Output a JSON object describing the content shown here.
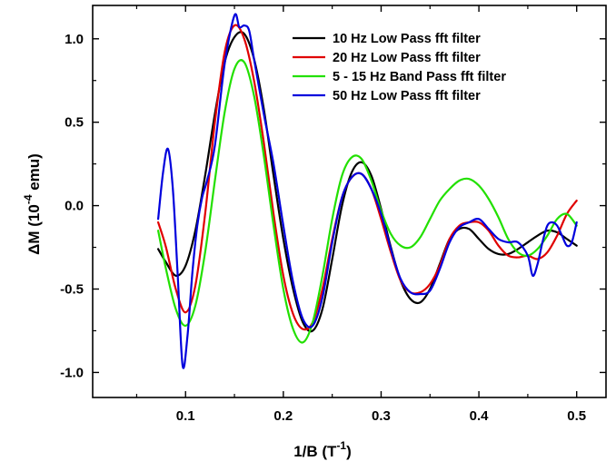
{
  "chart_data": {
    "type": "line",
    "title": "",
    "xlabel": "1/B (T",
    "xlabel_sup": "-1",
    "xlabel_tail": ")",
    "ylabel_pre": "ΔM (10",
    "ylabel_sup": "-4",
    "ylabel_tail": " emu)",
    "xlim": [
      0.005,
      0.53
    ],
    "ylim": [
      -1.15,
      1.2
    ],
    "x_ticks": [
      0.1,
      0.2,
      0.3,
      0.4,
      0.5
    ],
    "x_tick_labels": [
      "0.1",
      "0.2",
      "0.3",
      "0.4",
      "0.5"
    ],
    "y_ticks": [
      -1.0,
      -0.5,
      0.0,
      0.5,
      1.0
    ],
    "y_tick_labels": [
      "-1.0",
      "-0.5",
      "0.0",
      "0.5",
      "1.0"
    ],
    "grid": false,
    "legend_position": "top-right",
    "series": [
      {
        "name": "10 Hz Low Pass fft filter",
        "color": "#000000",
        "x": [
          0.072,
          0.08,
          0.09,
          0.1,
          0.11,
          0.12,
          0.13,
          0.14,
          0.15,
          0.16,
          0.17,
          0.18,
          0.19,
          0.2,
          0.21,
          0.22,
          0.23,
          0.24,
          0.25,
          0.26,
          0.27,
          0.28,
          0.29,
          0.3,
          0.31,
          0.32,
          0.33,
          0.34,
          0.35,
          0.36,
          0.37,
          0.38,
          0.39,
          0.4,
          0.41,
          0.42,
          0.43,
          0.44,
          0.45,
          0.46,
          0.47,
          0.48,
          0.49,
          0.5
        ],
        "y": [
          -0.26,
          -0.34,
          -0.42,
          -0.36,
          -0.15,
          0.18,
          0.55,
          0.86,
          1.01,
          1.03,
          0.88,
          0.58,
          0.18,
          -0.2,
          -0.5,
          -0.7,
          -0.75,
          -0.62,
          -0.32,
          0.0,
          0.2,
          0.26,
          0.18,
          -0.02,
          -0.25,
          -0.45,
          -0.56,
          -0.58,
          -0.5,
          -0.35,
          -0.2,
          -0.14,
          -0.14,
          -0.2,
          -0.26,
          -0.29,
          -0.29,
          -0.26,
          -0.22,
          -0.18,
          -0.15,
          -0.16,
          -0.2,
          -0.24
        ]
      },
      {
        "name": "20 Hz Low Pass fft filter",
        "color": "#e00000",
        "x": [
          0.072,
          0.08,
          0.09,
          0.1,
          0.11,
          0.12,
          0.13,
          0.14,
          0.15,
          0.16,
          0.17,
          0.18,
          0.19,
          0.2,
          0.21,
          0.22,
          0.23,
          0.24,
          0.25,
          0.26,
          0.27,
          0.28,
          0.29,
          0.3,
          0.31,
          0.32,
          0.33,
          0.34,
          0.35,
          0.36,
          0.37,
          0.38,
          0.39,
          0.4,
          0.41,
          0.42,
          0.43,
          0.44,
          0.45,
          0.46,
          0.47,
          0.48,
          0.49,
          0.5
        ],
        "y": [
          -0.1,
          -0.25,
          -0.5,
          -0.64,
          -0.48,
          -0.05,
          0.5,
          0.92,
          1.08,
          1.0,
          0.75,
          0.38,
          -0.05,
          -0.42,
          -0.65,
          -0.74,
          -0.7,
          -0.5,
          -0.2,
          0.05,
          0.17,
          0.19,
          0.1,
          -0.08,
          -0.28,
          -0.45,
          -0.52,
          -0.52,
          -0.47,
          -0.36,
          -0.2,
          -0.12,
          -0.1,
          -0.1,
          -0.15,
          -0.24,
          -0.3,
          -0.31,
          -0.3,
          -0.32,
          -0.28,
          -0.18,
          -0.05,
          0.03
        ]
      },
      {
        "name": "5 - 15 Hz Band Pass  fft filter",
        "color": "#22e000",
        "x": [
          0.072,
          0.08,
          0.09,
          0.1,
          0.11,
          0.12,
          0.13,
          0.14,
          0.15,
          0.16,
          0.17,
          0.18,
          0.19,
          0.2,
          0.21,
          0.22,
          0.23,
          0.24,
          0.25,
          0.26,
          0.27,
          0.28,
          0.29,
          0.3,
          0.31,
          0.32,
          0.33,
          0.34,
          0.35,
          0.36,
          0.37,
          0.38,
          0.39,
          0.4,
          0.41,
          0.42,
          0.43,
          0.44,
          0.45,
          0.46,
          0.47,
          0.48,
          0.49,
          0.5
        ],
        "y": [
          -0.15,
          -0.38,
          -0.62,
          -0.72,
          -0.6,
          -0.28,
          0.15,
          0.56,
          0.82,
          0.86,
          0.66,
          0.3,
          -0.12,
          -0.5,
          -0.74,
          -0.82,
          -0.7,
          -0.42,
          -0.08,
          0.18,
          0.29,
          0.28,
          0.15,
          -0.03,
          -0.17,
          -0.24,
          -0.25,
          -0.19,
          -0.08,
          0.03,
          0.1,
          0.15,
          0.16,
          0.12,
          0.04,
          -0.07,
          -0.2,
          -0.28,
          -0.3,
          -0.26,
          -0.18,
          -0.08,
          -0.05,
          -0.12
        ]
      },
      {
        "name": "50 Hz Low Pass fft filter",
        "color": "#0000dd",
        "x": [
          0.072,
          0.077,
          0.082,
          0.087,
          0.092,
          0.097,
          0.102,
          0.107,
          0.112,
          0.117,
          0.122,
          0.13,
          0.14,
          0.15,
          0.155,
          0.16,
          0.165,
          0.17,
          0.18,
          0.19,
          0.2,
          0.21,
          0.22,
          0.23,
          0.24,
          0.25,
          0.26,
          0.27,
          0.28,
          0.29,
          0.3,
          0.31,
          0.32,
          0.33,
          0.34,
          0.35,
          0.36,
          0.37,
          0.38,
          0.39,
          0.4,
          0.41,
          0.42,
          0.43,
          0.44,
          0.45,
          0.455,
          0.46,
          0.465,
          0.47,
          0.475,
          0.48,
          0.485,
          0.49,
          0.495,
          0.5
        ],
        "y": [
          -0.08,
          0.2,
          0.34,
          0.1,
          -0.42,
          -0.96,
          -0.78,
          -0.4,
          -0.12,
          0.05,
          0.15,
          0.36,
          0.85,
          1.14,
          1.07,
          1.08,
          1.05,
          0.88,
          0.55,
          0.25,
          -0.12,
          -0.46,
          -0.68,
          -0.72,
          -0.55,
          -0.22,
          0.05,
          0.17,
          0.19,
          0.1,
          -0.05,
          -0.26,
          -0.44,
          -0.52,
          -0.53,
          -0.51,
          -0.38,
          -0.22,
          -0.13,
          -0.1,
          -0.08,
          -0.14,
          -0.2,
          -0.22,
          -0.22,
          -0.3,
          -0.42,
          -0.35,
          -0.22,
          -0.12,
          -0.1,
          -0.12,
          -0.18,
          -0.24,
          -0.22,
          -0.1
        ]
      }
    ]
  }
}
